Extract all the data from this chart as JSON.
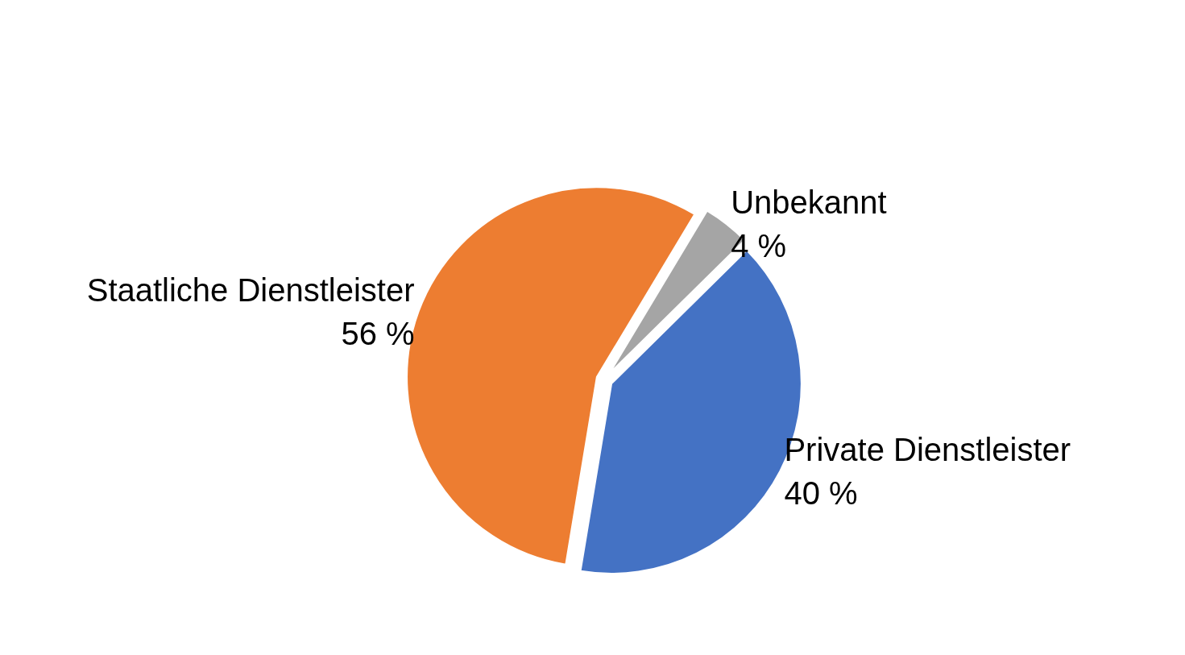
{
  "chart_data": {
    "type": "pie",
    "categories": [
      "Unbekannt",
      "Private Dienstleister",
      "Staatliche Dienstleister"
    ],
    "values": [
      4,
      40,
      56
    ],
    "colors": [
      "#a5a5a5",
      "#4472c4",
      "#ed7d31"
    ],
    "value_labels": [
      "4 %",
      "40 %",
      "56 %"
    ],
    "legend": false
  }
}
